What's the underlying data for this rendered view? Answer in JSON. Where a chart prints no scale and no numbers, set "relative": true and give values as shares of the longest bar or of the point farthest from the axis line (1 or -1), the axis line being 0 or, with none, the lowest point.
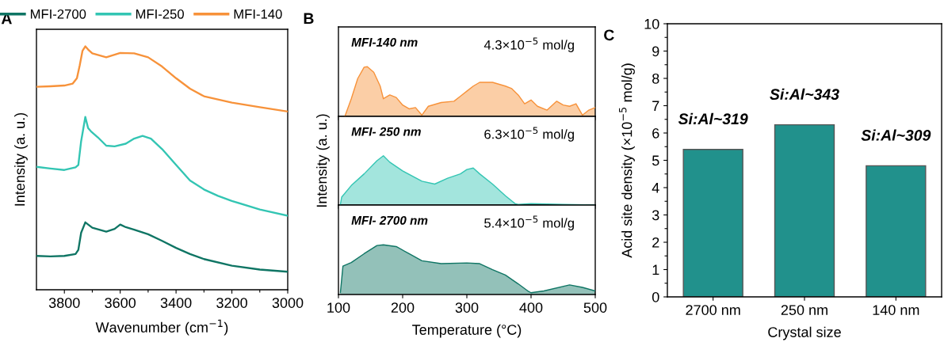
{
  "chart_data": [
    {
      "type": "line",
      "title": "A",
      "xlabel": "Wavenumber (cm$^{−1}$)",
      "ylabel": "Intensity (a. u.)",
      "relative": true,
      "legend": "top",
      "tick_labels": "x",
      "xlim": [
        3900,
        3000
      ],
      "xticks": [
        3800,
        {
          "value": 3700,
          "label": null
        },
        3600,
        {
          "value": 3500,
          "label": null
        },
        3400,
        {
          "value": 3300,
          "label": null
        },
        3200,
        {
          "value": 3100,
          "label": null
        },
        3000
      ],
      "series": [
        {
          "name": "MFI-2700",
          "color": "#0f7564",
          "x": [
            3900,
            3850,
            3800,
            3760,
            3750,
            3740,
            3725,
            3700,
            3650,
            3620,
            3600,
            3580,
            3550,
            3500,
            3450,
            3400,
            3350,
            3300,
            3200,
            3100,
            3000
          ],
          "values": [
            0.139,
            0.137,
            0.139,
            0.147,
            0.164,
            0.234,
            0.277,
            0.255,
            0.239,
            0.25,
            0.268,
            0.257,
            0.247,
            0.228,
            0.201,
            0.172,
            0.147,
            0.126,
            0.099,
            0.083,
            0.074
          ]
        },
        {
          "name": "MFI-250",
          "color": "#33c5b3",
          "x": [
            3900,
            3850,
            3800,
            3760,
            3750,
            3740,
            3725,
            3715,
            3705,
            3680,
            3650,
            3620,
            3580,
            3550,
            3520,
            3490,
            3450,
            3400,
            3350,
            3300,
            3250,
            3200,
            3100,
            3000
          ],
          "values": [
            0.505,
            0.498,
            0.492,
            0.503,
            0.513,
            0.61,
            0.71,
            0.664,
            0.651,
            0.626,
            0.592,
            0.589,
            0.6,
            0.621,
            0.632,
            0.621,
            0.578,
            0.513,
            0.449,
            0.412,
            0.386,
            0.365,
            0.33,
            0.304
          ]
        },
        {
          "name": "MFI-140",
          "color": "#f7923a",
          "x": [
            3900,
            3850,
            3800,
            3770,
            3755,
            3745,
            3735,
            3725,
            3715,
            3700,
            3650,
            3600,
            3550,
            3500,
            3450,
            3400,
            3350,
            3300,
            3200,
            3100,
            3000
          ],
          "values": [
            0.834,
            0.836,
            0.839,
            0.847,
            0.869,
            0.922,
            0.982,
            1.0,
            0.987,
            0.971,
            0.955,
            0.973,
            0.971,
            0.955,
            0.917,
            0.869,
            0.826,
            0.795,
            0.769,
            0.75,
            0.732
          ]
        }
      ]
    },
    {
      "type": "area",
      "title": "B",
      "relative": true,
      "tick_labels": false,
      "xlim": [
        100,
        500
      ],
      "xticks": [
        100,
        200,
        300,
        400,
        500
      ],
      "annotations": [
        "MFI-140 nm",
        "4.3×10$^{−5}$ mol/g"
      ],
      "series": [
        {
          "color": "#f7923a",
          "x": [
            110,
            120,
            130,
            140,
            145,
            155,
            165,
            170,
            180,
            190,
            200,
            210,
            220,
            230,
            240,
            260,
            280,
            290,
            300,
            310,
            320,
            340,
            360,
            370,
            380,
            390,
            400,
            410,
            425,
            440,
            450,
            460,
            470,
            480,
            490,
            500
          ],
          "values": [
            0,
            0.355,
            0.761,
            0.99,
            1.0,
            0.888,
            0.609,
            0.355,
            0.431,
            0.381,
            0.228,
            0.152,
            0.178,
            0.025,
            0.203,
            0.279,
            0.305,
            0.406,
            0.508,
            0.609,
            0.685,
            0.685,
            0.609,
            0.558,
            0.431,
            0.254,
            0.33,
            0.203,
            0.127,
            0.305,
            0.228,
            0.203,
            0.254,
            0.025,
            0.127,
            0.178
          ]
        }
      ]
    },
    {
      "type": "area",
      "ylabel": "Intensity (a. u.)",
      "relative": true,
      "tick_labels": false,
      "xlim": [
        100,
        500
      ],
      "xticks": [
        100,
        200,
        300,
        400,
        500
      ],
      "annotations": [
        "MFI- 250 nm",
        "6.3×10$^{−5}$ mol/g"
      ],
      "series": [
        {
          "color": "#33c5b3",
          "x": [
            103,
            105,
            120,
            140,
            160,
            170,
            180,
            200,
            230,
            250,
            270,
            290,
            300,
            310,
            320,
            340,
            360,
            375,
            380,
            400,
            450,
            500
          ],
          "values": [
            0.012,
            0.16,
            0.396,
            0.633,
            0.899,
            1.0,
            0.87,
            0.692,
            0.485,
            0.426,
            0.544,
            0.633,
            0.722,
            0.751,
            0.633,
            0.426,
            0.189,
            0.03,
            0.012,
            0.03,
            0.012,
            0
          ]
        }
      ]
    },
    {
      "type": "area",
      "xlabel": "Temperature (°C)",
      "relative": true,
      "tick_labels": "x",
      "xlim": [
        100,
        500
      ],
      "xticks": [
        100,
        200,
        300,
        400,
        500
      ],
      "annotations": [
        "MFI- 2700 nm",
        "5.4×10$^{−5}$ mol/g"
      ],
      "series": [
        {
          "color": "#0f7564",
          "x": [
            103,
            107,
            120,
            140,
            160,
            170,
            190,
            210,
            230,
            260,
            300,
            320,
            340,
            360,
            380,
            395,
            400,
            420,
            460,
            480,
            500
          ],
          "values": [
            0.036,
            0.571,
            0.643,
            0.821,
            0.986,
            1.0,
            0.964,
            0.821,
            0.679,
            0.621,
            0.636,
            0.621,
            0.5,
            0.393,
            0.214,
            0.071,
            0.036,
            0.071,
            0.193,
            0.143,
            0.071
          ]
        }
      ]
    },
    {
      "type": "bar",
      "title": "C",
      "xlabel": "Crystal size",
      "ylabel": "Acid site density (×10$^{−5}$ mol/g)",
      "categories": [
        "2700 nm",
        "250 nm",
        "140 nm"
      ],
      "ylim": [
        0,
        10
      ],
      "yticks": [
        0,
        {
          "value": 0.5,
          "label": null
        },
        1,
        {
          "value": 1.5,
          "label": null
        },
        2,
        {
          "value": 2.5,
          "label": null
        },
        3,
        {
          "value": 3.5,
          "label": null
        },
        4,
        {
          "value": 4.5,
          "label": null
        },
        5,
        {
          "value": 5.5,
          "label": null
        },
        6,
        {
          "value": 6.5,
          "label": null
        },
        7,
        {
          "value": 7.5,
          "label": null
        },
        8,
        {
          "value": 8.5,
          "label": null
        },
        9,
        {
          "value": 9.5,
          "label": null
        },
        10
      ],
      "annotations": [
        "Si:Al~319",
        "Si:Al~343",
        "Si:Al~309"
      ],
      "series": [
        {
          "color": "#21918c",
          "values": [
            5.4,
            6.3,
            4.8
          ]
        }
      ]
    }
  ]
}
